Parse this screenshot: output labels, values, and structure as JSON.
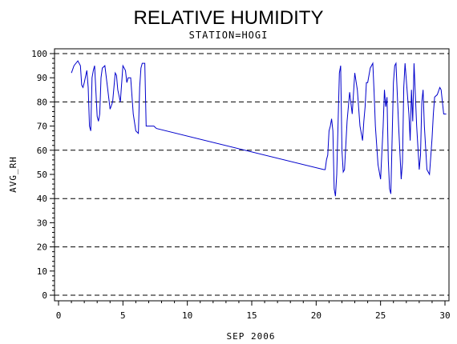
{
  "chart_data": {
    "type": "line",
    "title": "RELATIVE HUMIDITY",
    "subtitle": "STATION=HOGI",
    "xlabel": "SEP 2006",
    "ylabel": "AVG_RH",
    "xlim": [
      0,
      30
    ],
    "ylim": [
      0,
      100
    ],
    "x_ticks": [
      0,
      5,
      10,
      15,
      20,
      25,
      30
    ],
    "y_ticks": [
      0,
      10,
      20,
      30,
      40,
      50,
      60,
      70,
      80,
      90,
      100
    ],
    "gridlines_y": [
      0,
      20,
      40,
      60,
      80,
      100
    ],
    "grid_style": "dashed horizontal",
    "series": [
      {
        "color": "#0000cc",
        "x": [
          1.0,
          1.2,
          1.5,
          1.7,
          1.8,
          1.9,
          2.0,
          2.2,
          2.3,
          2.4,
          2.5,
          2.6,
          2.7,
          2.8,
          3.0,
          3.1,
          3.2,
          3.3,
          3.4,
          3.6,
          3.8,
          4.0,
          4.2,
          4.4,
          4.5,
          4.6,
          4.8,
          5.0,
          5.2,
          5.3,
          5.4,
          5.6,
          5.8,
          6.0,
          6.2,
          6.3,
          6.4,
          6.5,
          6.6,
          6.7,
          6.8,
          7.0,
          7.2,
          7.3,
          7.4,
          7.6,
          20.6,
          20.7,
          20.8,
          20.9,
          21.0,
          21.1,
          21.2,
          21.3,
          21.4,
          21.5,
          21.6,
          21.8,
          21.9,
          22.0,
          22.1,
          22.2,
          22.4,
          22.6,
          22.8,
          23.0,
          23.2,
          23.4,
          23.6,
          23.7,
          23.8,
          23.9,
          24.0,
          24.2,
          24.4,
          24.5,
          24.6,
          24.8,
          25.0,
          25.2,
          25.3,
          25.4,
          25.5,
          25.6,
          25.7,
          25.8,
          26.0,
          26.1,
          26.2,
          26.4,
          26.6,
          26.7,
          26.8,
          26.9,
          27.0,
          27.2,
          27.3,
          27.4,
          27.5,
          27.6,
          27.8,
          28.0,
          28.1,
          28.2,
          28.3,
          28.4,
          28.6,
          28.8,
          29.0,
          29.1,
          29.2,
          29.4,
          29.6,
          29.7,
          29.8,
          29.9,
          30.0,
          30.1
        ],
        "y": [
          92,
          95,
          97,
          95,
          87,
          86,
          88,
          93,
          86,
          70,
          68,
          90,
          93,
          95,
          74,
          72,
          75,
          90,
          94,
          95,
          86,
          77,
          80,
          92,
          91,
          85,
          80,
          95,
          93,
          88,
          90,
          90,
          75,
          68,
          67,
          86,
          94,
          96,
          96,
          96,
          70,
          70,
          70,
          70,
          70,
          69,
          52,
          52,
          56,
          58,
          68,
          70,
          73,
          68,
          44,
          41,
          50,
          92,
          95,
          60,
          51,
          52,
          72,
          84,
          75,
          92,
          85,
          70,
          64,
          72,
          78,
          88,
          88,
          94,
          96,
          84,
          70,
          54,
          48,
          70,
          85,
          78,
          82,
          56,
          44,
          42,
          88,
          95,
          96,
          70,
          48,
          55,
          86,
          96,
          89,
          75,
          64,
          85,
          72,
          96,
          70,
          52,
          58,
          80,
          85,
          70,
          52,
          50,
          65,
          75,
          82,
          83,
          86,
          85,
          80,
          75,
          75,
          75
        ]
      }
    ]
  }
}
